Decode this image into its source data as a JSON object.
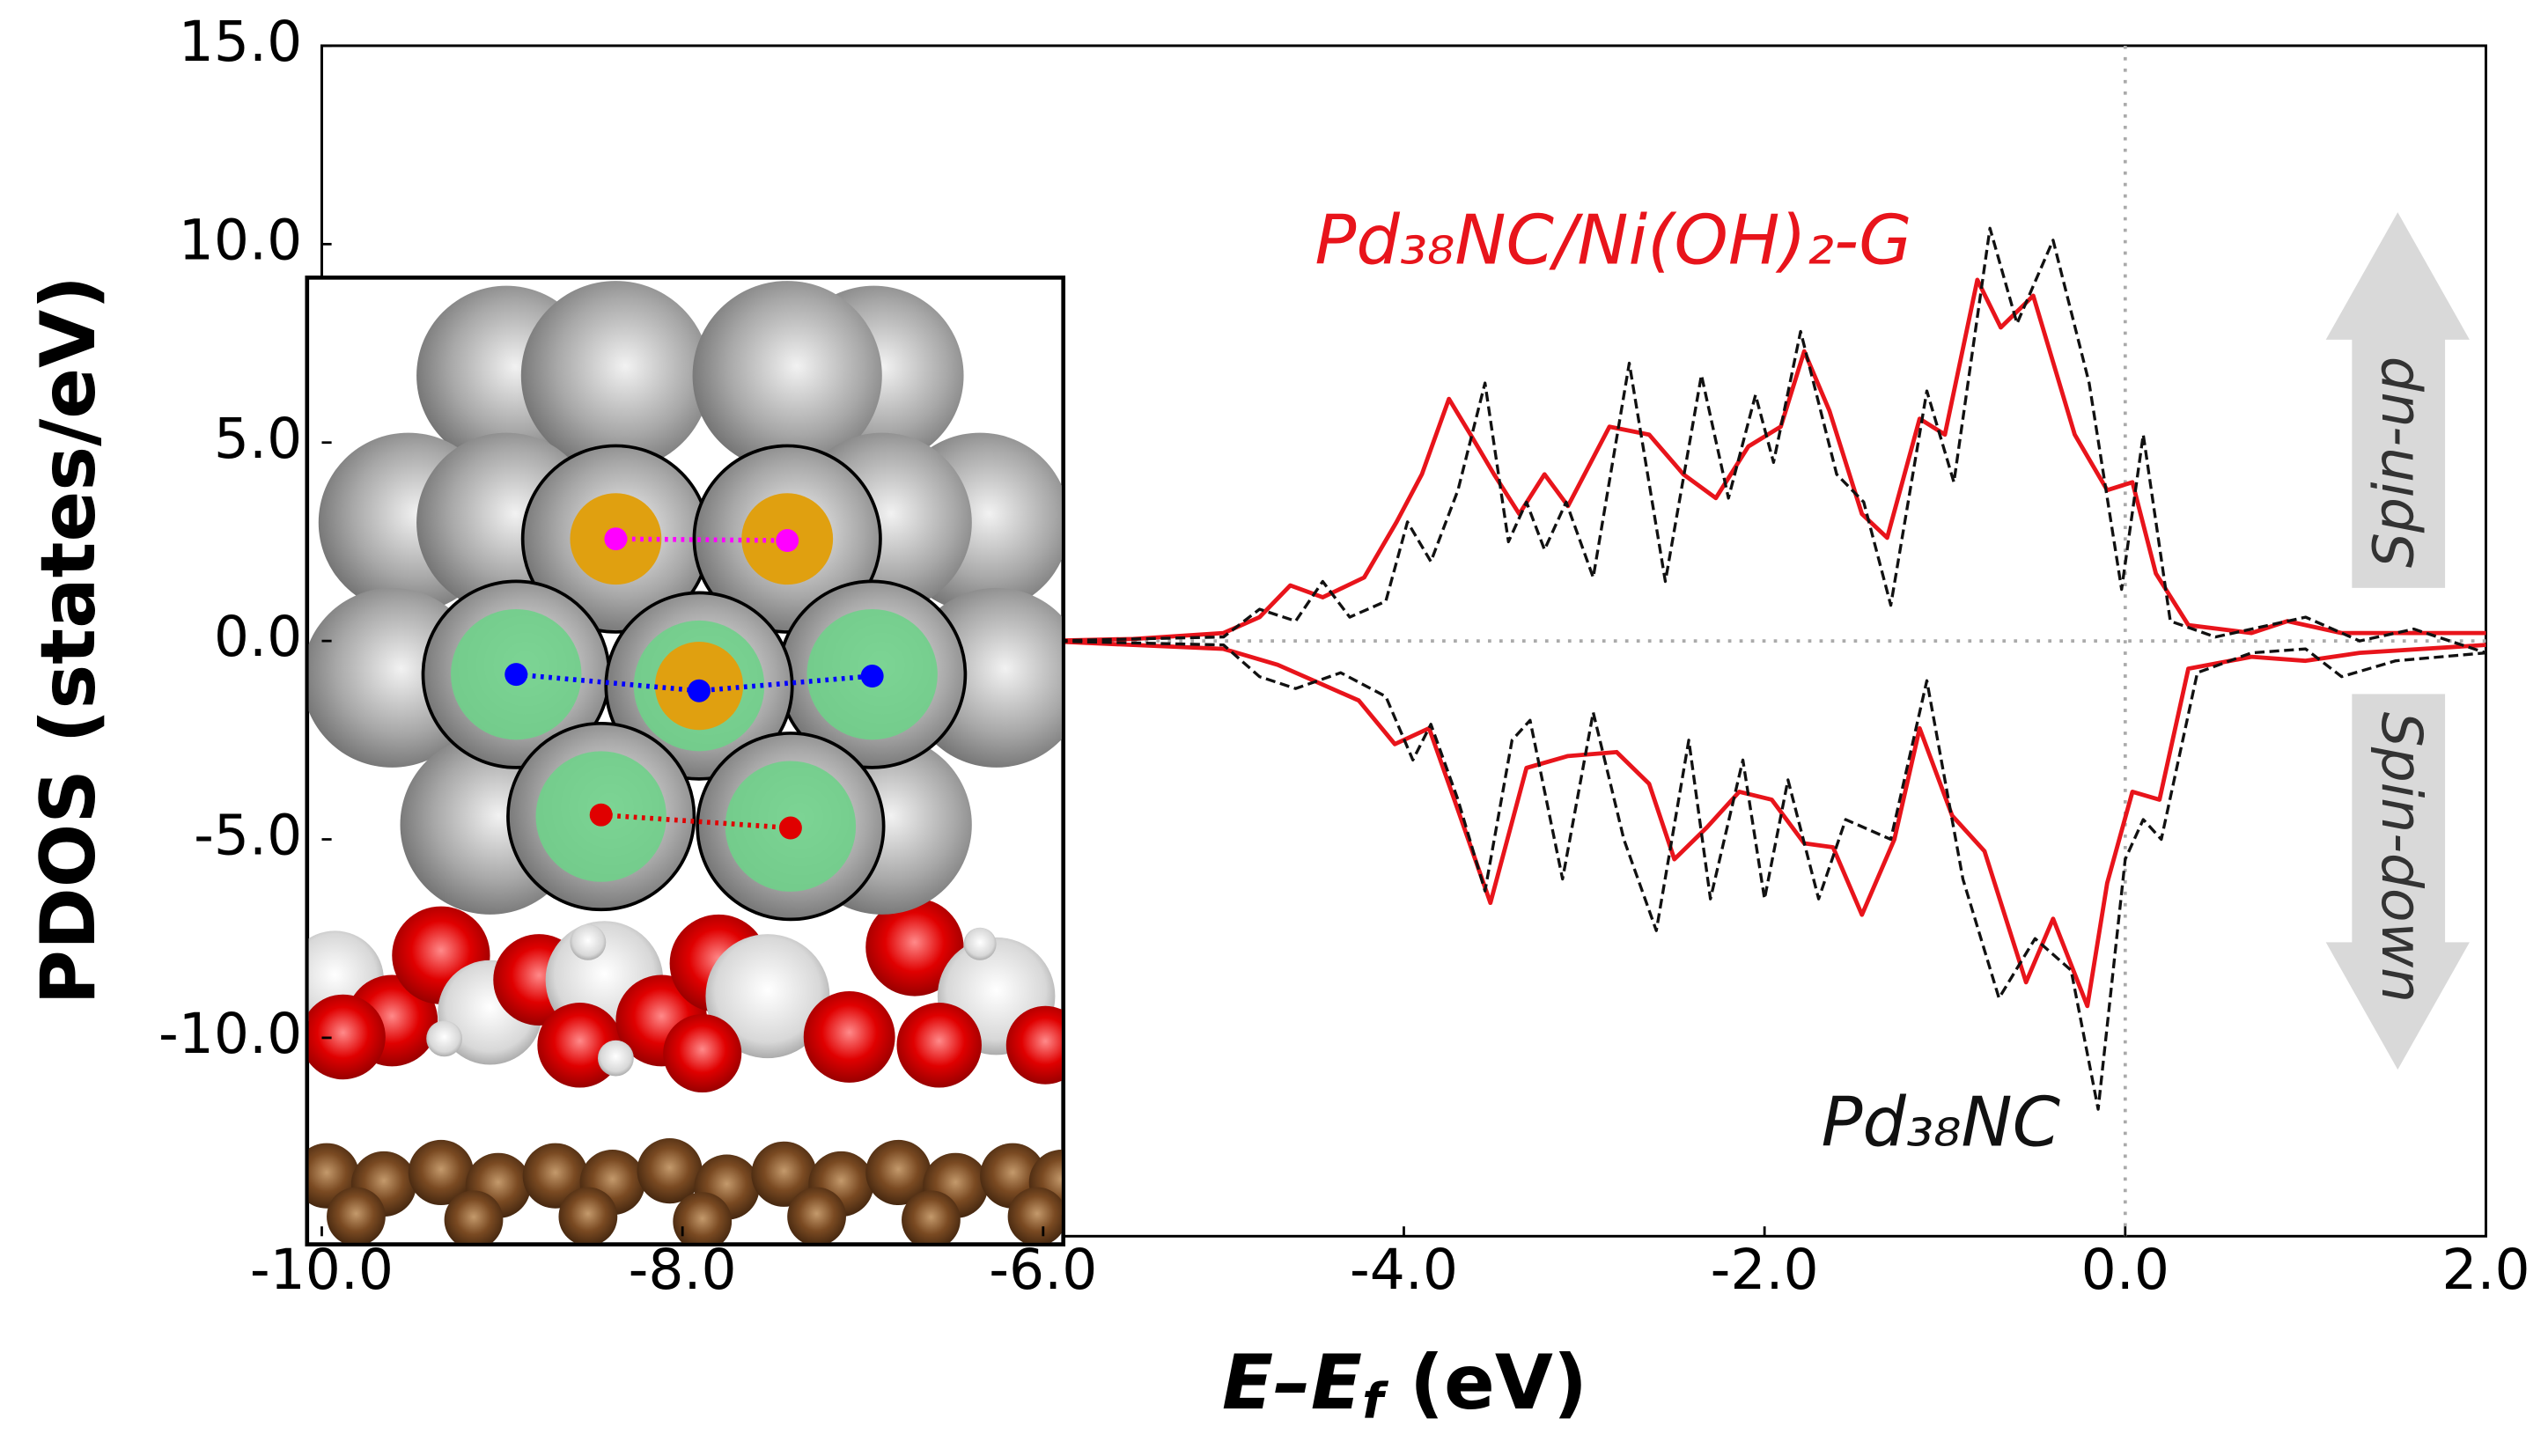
{
  "chart_data": {
    "type": "line",
    "y_label": "PDOS (states/eV)",
    "x_label": {
      "var": "E–E",
      "sub": "f",
      "unit": " (eV)"
    },
    "xlim": [
      -10,
      2
    ],
    "ylim": [
      -15,
      15
    ],
    "xticks": [
      {
        "value": -10,
        "label": "-10.0"
      },
      {
        "value": -8,
        "label": "-8.0"
      },
      {
        "value": -6,
        "label": "-6.0"
      },
      {
        "value": -4,
        "label": "-4.0"
      },
      {
        "value": -2,
        "label": "-2.0"
      },
      {
        "value": 0,
        "label": "0.0"
      },
      {
        "value": 2,
        "label": "2.0"
      }
    ],
    "yticks": [
      {
        "value": -10,
        "label": "-10.0"
      },
      {
        "value": -5,
        "label": "-5.0"
      },
      {
        "value": 0,
        "label": "0.0"
      },
      {
        "value": 5,
        "label": "5.0"
      },
      {
        "value": 10,
        "label": "10.0"
      },
      {
        "value": 15,
        "label": "15.0"
      }
    ],
    "annotations": {
      "spin_up": "Spin-up",
      "spin_down": "Spin-down"
    },
    "series": [
      {
        "name": "Pd₃₈NC/Ni(OH)₂-G",
        "color": "#e8141b",
        "dashed": false,
        "spin_up": {
          "x": [
            -6,
            -5.5,
            -5,
            -4.8,
            -4.63,
            -4.45,
            -4.22,
            -4.04,
            -3.9,
            -3.75,
            -3.63,
            -3.5,
            -3.36,
            -3.22,
            -3.09,
            -2.86,
            -2.64,
            -2.45,
            -2.27,
            -2.09,
            -1.91,
            -1.78,
            -1.64,
            -1.46,
            -1.32,
            -1.14,
            -1.0,
            -0.82,
            -0.69,
            -0.51,
            -0.28,
            -0.1,
            0.04,
            0.17,
            0.35,
            0.7,
            0.9,
            1.2,
            1.44,
            2.0
          ],
          "values": [
            0,
            0.05,
            0.2,
            0.6,
            1.4,
            1.1,
            1.6,
            3.0,
            4.2,
            6.1,
            5.2,
            4.2,
            3.2,
            4.2,
            3.4,
            5.4,
            5.2,
            4.2,
            3.6,
            4.9,
            5.4,
            7.3,
            5.8,
            3.2,
            2.6,
            5.6,
            5.2,
            9.1,
            7.9,
            8.7,
            5.2,
            3.8,
            4.0,
            1.7,
            0.4,
            0.2,
            0.5,
            0.2,
            0.2,
            0.2
          ]
        },
        "spin_down": {
          "x": [
            -6,
            -5,
            -4.7,
            -4.5,
            -4.25,
            -4.05,
            -3.86,
            -3.72,
            -3.52,
            -3.32,
            -3.09,
            -2.82,
            -2.64,
            -2.5,
            -2.32,
            -2.14,
            -1.96,
            -1.78,
            -1.62,
            -1.46,
            -1.28,
            -1.14,
            -0.96,
            -0.78,
            -0.55,
            -0.4,
            -0.21,
            -0.1,
            0.04,
            0.19,
            0.35,
            0.7,
            1.0,
            1.3,
            2.0
          ],
          "values": [
            0,
            -0.2,
            -0.6,
            -1.0,
            -1.5,
            -2.6,
            -2.2,
            -4.0,
            -6.6,
            -3.2,
            -2.9,
            -2.8,
            -3.6,
            -5.5,
            -4.7,
            -3.8,
            -4.0,
            -5.1,
            -5.2,
            -6.9,
            -5.0,
            -2.2,
            -4.4,
            -5.3,
            -8.6,
            -7.0,
            -9.2,
            -6.1,
            -3.8,
            -4.0,
            -0.7,
            -0.4,
            -0.5,
            -0.3,
            -0.1
          ]
        }
      },
      {
        "name": "Pd₃₈NC",
        "color": "#111111",
        "dashed": true,
        "spin_up": {
          "x": [
            -6,
            -5,
            -4.8,
            -4.6,
            -4.45,
            -4.3,
            -4.1,
            -3.98,
            -3.85,
            -3.7,
            -3.55,
            -3.42,
            -3.32,
            -3.22,
            -3.1,
            -2.95,
            -2.75,
            -2.55,
            -2.35,
            -2.2,
            -2.05,
            -1.95,
            -1.8,
            -1.6,
            -1.45,
            -1.3,
            -1.1,
            -0.95,
            -0.75,
            -0.6,
            -0.4,
            -0.2,
            -0.02,
            0.1,
            0.25,
            0.5,
            1.0,
            1.3,
            1.6,
            2.0
          ],
          "values": [
            0,
            0.1,
            0.8,
            0.5,
            1.5,
            0.6,
            1.0,
            3.0,
            2.0,
            3.8,
            6.5,
            2.5,
            3.5,
            2.3,
            3.5,
            1.6,
            7.0,
            1.5,
            6.7,
            3.6,
            6.2,
            4.5,
            7.8,
            4.2,
            3.5,
            0.9,
            6.3,
            4.0,
            10.4,
            8.0,
            10.1,
            6.5,
            1.3,
            5.2,
            0.5,
            0.1,
            0.6,
            0.0,
            0.3,
            -0.3
          ]
        },
        "spin_down": {
          "x": [
            -6,
            -5,
            -4.8,
            -4.6,
            -4.35,
            -4.1,
            -3.95,
            -3.85,
            -3.7,
            -3.55,
            -3.4,
            -3.3,
            -3.12,
            -2.95,
            -2.78,
            -2.6,
            -2.42,
            -2.3,
            -2.12,
            -2.0,
            -1.87,
            -1.7,
            -1.55,
            -1.3,
            -1.1,
            -0.9,
            -0.7,
            -0.5,
            -0.3,
            -0.15,
            0.0,
            0.1,
            0.2,
            0.4,
            0.7,
            1.0,
            1.2,
            1.5,
            2.0
          ],
          "values": [
            0,
            -0.1,
            -0.9,
            -1.2,
            -0.8,
            -1.4,
            -3.0,
            -2.1,
            -4.0,
            -6.3,
            -2.5,
            -2.0,
            -6.0,
            -1.8,
            -5.0,
            -7.3,
            -2.5,
            -6.5,
            -3.0,
            -6.5,
            -3.5,
            -6.5,
            -4.5,
            -5.0,
            -1.0,
            -6.0,
            -9.0,
            -7.5,
            -8.3,
            -11.8,
            -5.5,
            -4.5,
            -5.0,
            -0.8,
            -0.3,
            -0.2,
            -0.9,
            -0.5,
            -0.3
          ]
        }
      }
    ]
  }
}
